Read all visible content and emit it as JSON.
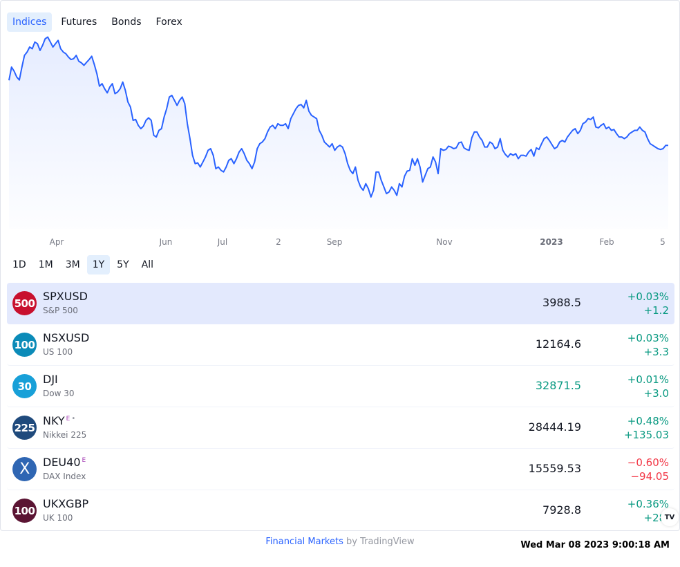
{
  "tabs": [
    "Indices",
    "Futures",
    "Bonds",
    "Forex"
  ],
  "active_tab": "Indices",
  "chart_data": {
    "type": "area",
    "series_name": "SPXUSD",
    "line_color": "#2962ff",
    "x_ticks": [
      "Apr",
      "Jun",
      "Jul",
      "2",
      "Sep",
      "Nov",
      "2023",
      "Feb",
      "5"
    ],
    "bold_tick": "2023",
    "ylim": [
      3550,
      4650
    ],
    "grid": false,
    "values": [
      4400,
      4480,
      4455,
      4420,
      4402,
      4480,
      4550,
      4570,
      4600,
      4590,
      4630,
      4620,
      4580,
      4610,
      4650,
      4660,
      4630,
      4600,
      4620,
      4640,
      4590,
      4570,
      4560,
      4540,
      4525,
      4530,
      4550,
      4515,
      4505,
      4490,
      4508,
      4525,
      4545,
      4495,
      4440,
      4365,
      4380,
      4350,
      4325,
      4360,
      4380,
      4320,
      4330,
      4350,
      4390,
      4340,
      4270,
      4240,
      4160,
      4165,
      4130,
      4110,
      4125,
      4160,
      4175,
      4160,
      4070,
      4060,
      4100,
      4110,
      4180,
      4230,
      4300,
      4310,
      4280,
      4250,
      4280,
      4300,
      4260,
      4140,
      4050,
      3950,
      3900,
      3905,
      3880,
      3910,
      3940,
      3980,
      3990,
      3950,
      3870,
      3880,
      3860,
      3850,
      3880,
      3920,
      3930,
      3900,
      3930,
      3970,
      3990,
      3960,
      3920,
      3900,
      3870,
      3910,
      3990,
      4020,
      4030,
      4050,
      4090,
      4120,
      4130,
      4110,
      4140,
      4130,
      4130,
      4140,
      4110,
      4170,
      4200,
      4230,
      4250,
      4255,
      4235,
      4280,
      4215,
      4190,
      4180,
      4170,
      4100,
      4070,
      4030,
      4015,
      4000,
      4020,
      3980,
      4000,
      4010,
      4000,
      3960,
      3900,
      3860,
      3840,
      3880,
      3800,
      3760,
      3740,
      3780,
      3750,
      3700,
      3740,
      3850,
      3850,
      3800,
      3760,
      3720,
      3730,
      3760,
      3740,
      3710,
      3780,
      3760,
      3825,
      3855,
      3860,
      3930,
      3890,
      3930,
      3880,
      3790,
      3830,
      3870,
      3880,
      3940,
      3910,
      3840,
      3990,
      3980,
      3985,
      4005,
      4000,
      3990,
      3995,
      4025,
      4030,
      3995,
      3985,
      3980,
      4055,
      4090,
      4090,
      4060,
      4040,
      4000,
      4000,
      4030,
      4020,
      3990,
      4000,
      4050,
      3980,
      3955,
      3940,
      3960,
      3950,
      3960,
      3930,
      3950,
      3950,
      3945,
      3970,
      3985,
      3945,
      3995,
      3985,
      4020,
      4050,
      4060,
      4040,
      4015,
      3990,
      4000,
      4030,
      4040,
      4030,
      4060,
      4080,
      4100,
      4110,
      4080,
      4100,
      4140,
      4150,
      4170,
      4165,
      4180,
      4120,
      4115,
      4130,
      4140,
      4110,
      4120,
      4100,
      4105,
      4080,
      4060,
      4060,
      4050,
      4060,
      4080,
      4090,
      4100,
      4100,
      4120,
      4100,
      4090,
      4050,
      4020,
      4010,
      4000,
      3990,
      3985,
      3990,
      4010,
      4010
    ]
  },
  "ranges": [
    "1D",
    "1M",
    "3M",
    "1Y",
    "5Y",
    "All"
  ],
  "active_range": "1Y",
  "symbols": [
    {
      "logo_text": "500",
      "logo_color": "#c8102e",
      "name": "SPXUSD",
      "sup": "",
      "desc": "S&P 500",
      "price": "3988.5",
      "price_green": false,
      "pct": "+0.03%",
      "abs": "+1.2",
      "up": true,
      "active": true
    },
    {
      "logo_text": "100",
      "logo_color": "#0b8bb8",
      "name": "NSXUSD",
      "sup": "",
      "desc": "US 100",
      "price": "12164.6",
      "price_green": false,
      "pct": "+0.03%",
      "abs": "+3.3",
      "up": true,
      "active": false
    },
    {
      "logo_text": "30",
      "logo_color": "#18a0d8",
      "name": "DJI",
      "sup": "",
      "desc": "Dow 30",
      "price": "32871.5",
      "price_green": true,
      "pct": "+0.01%",
      "abs": "+3.0",
      "up": true,
      "active": false
    },
    {
      "logo_text": "225",
      "logo_color": "#1f4a7c",
      "name": "NKY",
      "sup": "E",
      "dot": true,
      "desc": "Nikkei 225",
      "price": "28444.19",
      "price_green": false,
      "pct": "+0.48%",
      "abs": "+135.03",
      "up": true,
      "active": false
    },
    {
      "logo_text": "X",
      "logo_color": "#2f66b3",
      "name": "DEU40",
      "sup": "E",
      "desc": "DAX Index",
      "price": "15559.53",
      "price_green": false,
      "pct": "−0.60%",
      "abs": "−94.05",
      "up": false,
      "active": false
    },
    {
      "logo_text": "100",
      "logo_color": "#5b1433",
      "name": "UKXGBP",
      "sup": "",
      "desc": "UK 100",
      "price": "7928.8",
      "price_green": false,
      "pct": "+0.36%",
      "abs": "+28.",
      "up": true,
      "active": false
    }
  ],
  "badge_text": "TV",
  "footer": {
    "link": "Financial Markets",
    "by": " by TradingView"
  },
  "timestamp": "Wed Mar 08 2023 9:00:18 AM"
}
